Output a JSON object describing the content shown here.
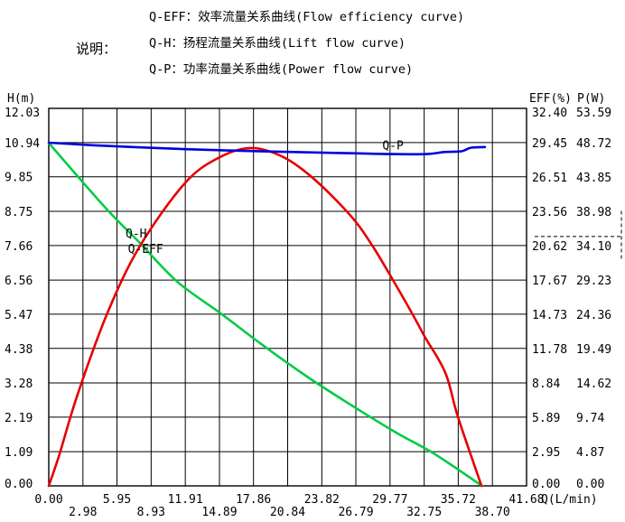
{
  "legend": {
    "title": "说明：",
    "items": [
      "Q-EFF：效率流量关系曲线(Flow efficiency curve)",
      "Q-H：扬程流量关系曲线(Lift flow curve)",
      "Q-P：功率流量关系曲线(Power flow curve)"
    ]
  },
  "chart_data": {
    "type": "line",
    "grid": true,
    "background": "#ffffff",
    "grid_color": "#000000",
    "text_color": "#000000",
    "axes": {
      "x": {
        "title": "Q(L/min)",
        "max": 41.68,
        "ticks": [
          "0.00",
          "2.98",
          "5.95",
          "8.93",
          "11.91",
          "14.89",
          "17.86",
          "20.84",
          "23.82",
          "26.79",
          "29.77",
          "32.75",
          "35.72",
          "38.70",
          "41.68"
        ]
      },
      "left_h": {
        "title": "H(m)",
        "max": 12.03,
        "ticks": [
          "12.03",
          "10.94",
          "9.85",
          "8.75",
          "7.66",
          "6.56",
          "5.47",
          "4.38",
          "3.28",
          "2.19",
          "1.09",
          "0.00"
        ]
      },
      "right_eff": {
        "title": "EFF(%)",
        "max": 32.4,
        "ticks": [
          "32.40",
          "29.45",
          "26.51",
          "23.56",
          "20.62",
          "17.67",
          "14.73",
          "11.78",
          "8.84",
          "5.89",
          "2.95",
          "0.00"
        ]
      },
      "right_p": {
        "title": "P(W)",
        "max": 53.59,
        "ticks": [
          "53.59",
          "48.72",
          "43.85",
          "38.98",
          "34.10",
          "29.23",
          "24.36",
          "19.49",
          "14.62",
          "9.74",
          "4.87",
          "0.00"
        ]
      }
    },
    "series": [
      {
        "name": "Q-H",
        "axis": "left_h",
        "color": "#00cc44",
        "points": [
          [
            0,
            10.93
          ],
          [
            2.6,
            9.83
          ],
          [
            5.3,
            8.72
          ],
          [
            7.9,
            7.76
          ],
          [
            11.2,
            6.51
          ],
          [
            15.1,
            5.47
          ],
          [
            18.6,
            4.5
          ],
          [
            22.3,
            3.54
          ],
          [
            25.7,
            2.73
          ],
          [
            30.2,
            1.72
          ],
          [
            33.6,
            1.03
          ],
          [
            37.8,
            0
          ]
        ]
      },
      {
        "name": "Q-EFF",
        "axis": "right_eff",
        "color": "#e60000",
        "points": [
          [
            0,
            0
          ],
          [
            0.9,
            2.6
          ],
          [
            2.5,
            7.8
          ],
          [
            5.1,
            14.8
          ],
          [
            7.9,
            20.5
          ],
          [
            11.8,
            25.9
          ],
          [
            14.7,
            28.1
          ],
          [
            17.6,
            29.0
          ],
          [
            20.5,
            28.2
          ],
          [
            23.3,
            26.2
          ],
          [
            26.5,
            23.0
          ],
          [
            28.3,
            20.5
          ],
          [
            30.0,
            17.7
          ],
          [
            31.7,
            14.8
          ],
          [
            32.8,
            12.8
          ],
          [
            34.6,
            9.7
          ],
          [
            35.7,
            5.9
          ],
          [
            37.75,
            0
          ]
        ]
      },
      {
        "name": "Q-P",
        "axis": "right_p",
        "color": "#0000dd",
        "points": [
          [
            0,
            48.72
          ],
          [
            4,
            48.35
          ],
          [
            8,
            48.05
          ],
          [
            12,
            47.8
          ],
          [
            16,
            47.6
          ],
          [
            20,
            47.45
          ],
          [
            24,
            47.3
          ],
          [
            27,
            47.2
          ],
          [
            30,
            47.1
          ],
          [
            33,
            47.1
          ],
          [
            34.5,
            47.4
          ],
          [
            36,
            47.5
          ],
          [
            36.8,
            48.0
          ],
          [
            38.05,
            48.1
          ]
        ]
      }
    ],
    "annotations": [
      {
        "text": "Q-H",
        "axis": "left_h",
        "q": 6.7,
        "value": 8.03
      },
      {
        "text": "Q-EFF",
        "axis": "right_eff",
        "q": 6.9,
        "value": 20.3
      },
      {
        "text": "Q-P",
        "axis": "right_p",
        "q": 29.1,
        "value": 48.3
      }
    ],
    "marker": {
      "style": "dashed",
      "axis": "right_eff",
      "value": 21.4,
      "span": [
        19.5,
        23.6
      ]
    }
  }
}
